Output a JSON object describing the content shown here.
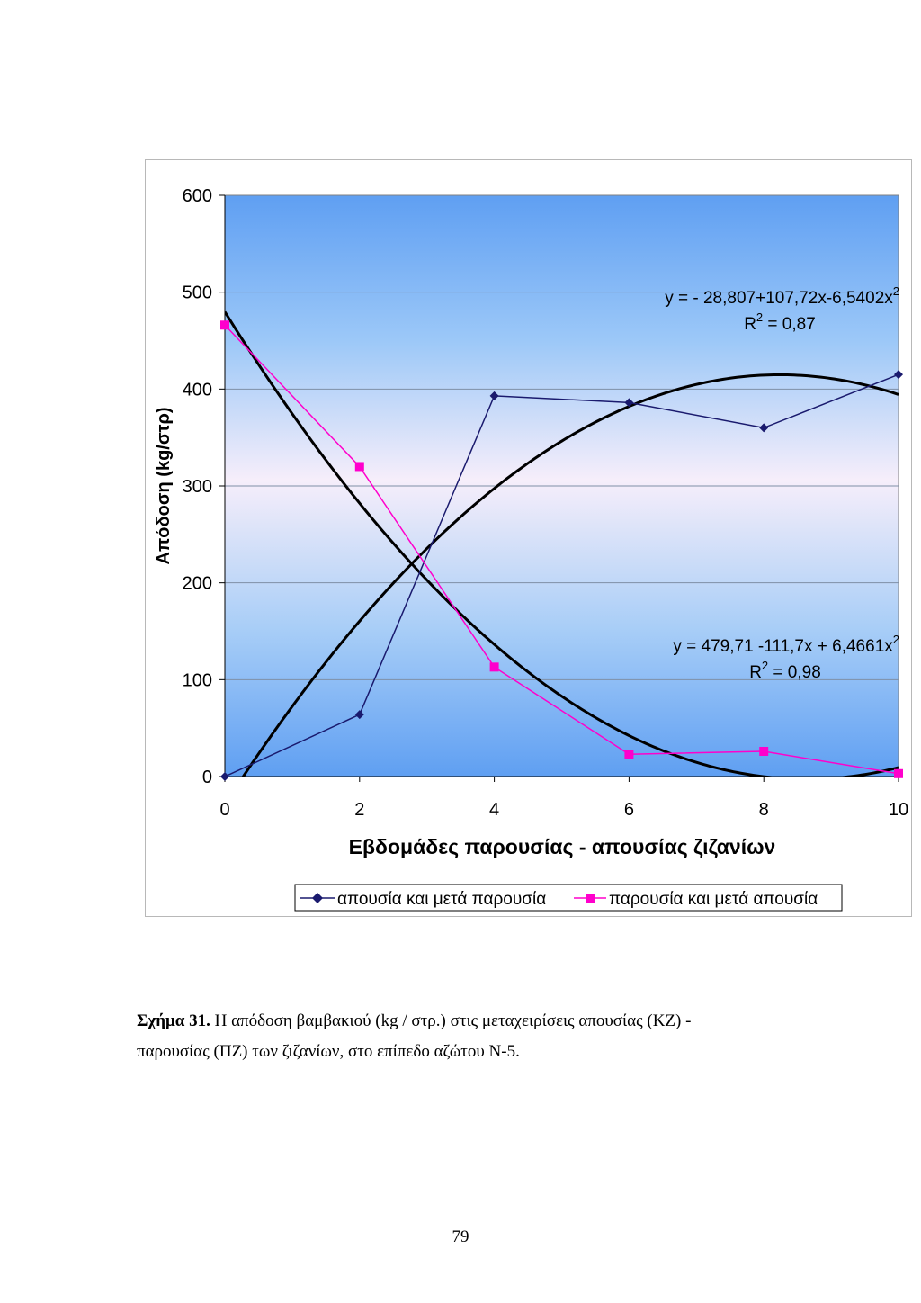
{
  "chart_data": {
    "type": "line",
    "xlabel": "Εβδομάδες παρουσίας - απουσίας ζιζανίων",
    "ylabel": "Απόδοση (kg/στρ)",
    "xlim": [
      0,
      10
    ],
    "ylim": [
      0,
      600
    ],
    "x_ticks": [
      "0",
      "2",
      "4",
      "6",
      "8",
      "10"
    ],
    "y_ticks": [
      "0",
      "100",
      "200",
      "300",
      "400",
      "500",
      "600"
    ],
    "grid": "horizontal",
    "legend_position": "bottom",
    "series": [
      {
        "name": "απουσία και μετά παρουσία",
        "color": "#1a1a6e",
        "marker": "diamond",
        "x": [
          0,
          2,
          4,
          6,
          8,
          10
        ],
        "y": [
          0,
          64,
          393,
          386,
          360,
          415
        ]
      },
      {
        "name": "παρουσία και μετά απουσία",
        "color": "#ff00cc",
        "marker": "square",
        "x": [
          0,
          2,
          4,
          6,
          8,
          10
        ],
        "y": [
          466,
          320,
          113,
          23,
          26,
          3
        ]
      }
    ],
    "trendlines": [
      {
        "label_line1": "y = - 28,807+107,72x-6,5402x",
        "label_sup1": "2",
        "label_line2_pre": "R",
        "label_sup2": "2",
        "label_line2_post": " = 0,87",
        "a": -28.807,
        "b": 107.72,
        "c": -6.5402
      },
      {
        "label_line1": "y =  479,71 -111,7x + 6,4661x",
        "label_sup1": "2",
        "label_line2_pre": "R",
        "label_sup2": "2",
        "label_line2_post": " = 0,98",
        "a": 479.71,
        "b": -111.7,
        "c": 6.4661
      }
    ]
  },
  "caption": {
    "figure_label": "Σχήμα 31.",
    "line1": " Η απόδοση βαμβακιού (kg / στρ.) στις μεταχειρίσεις απουσίας (ΚΖ) -",
    "line2": "παρουσίας (ΠΖ) των ζιζανίων, στο επίπεδο αζώτου Ν-5."
  },
  "page_number": "79"
}
